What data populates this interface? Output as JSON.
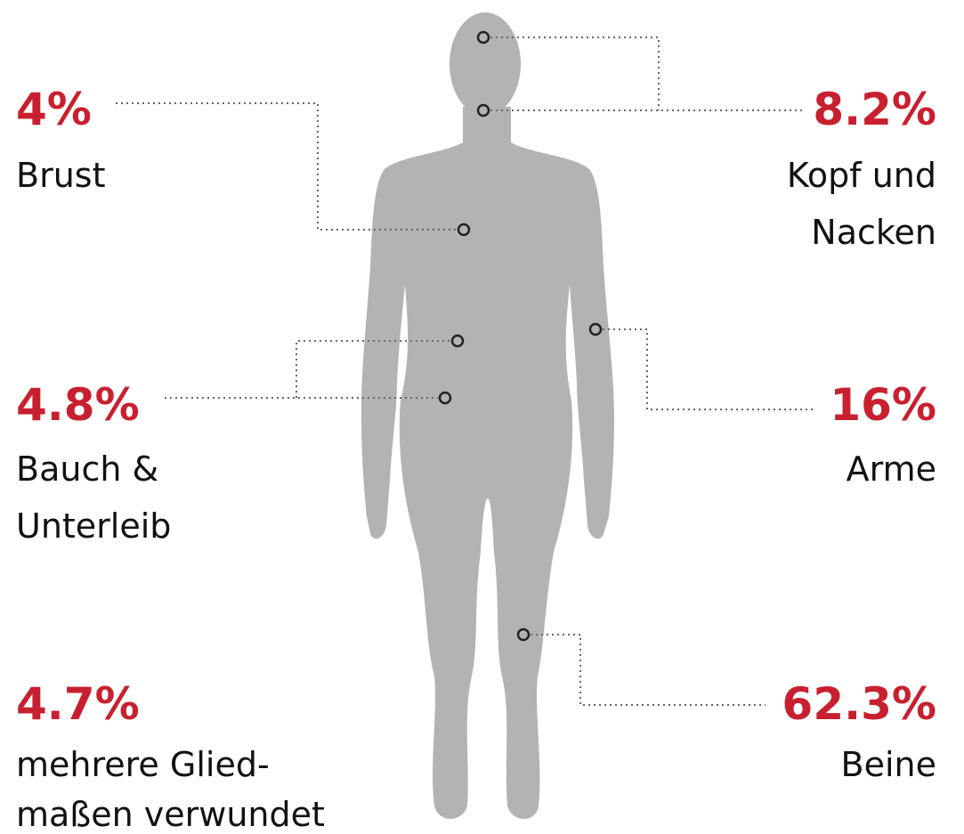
{
  "items": [
    {
      "percent": "4%",
      "label": [
        "Brust"
      ]
    },
    {
      "percent": "8.2%",
      "label": [
        "Kopf und",
        "Nacken"
      ]
    },
    {
      "percent": "4.8%",
      "label": [
        "Bauch &",
        "Unterleib"
      ]
    },
    {
      "percent": "16%",
      "label": [
        "Arme"
      ]
    },
    {
      "percent": "4.7%",
      "label": [
        "mehrere Glied-",
        "maßen verwundet"
      ]
    },
    {
      "percent": "62.3%",
      "label": [
        "Beine"
      ]
    }
  ]
}
